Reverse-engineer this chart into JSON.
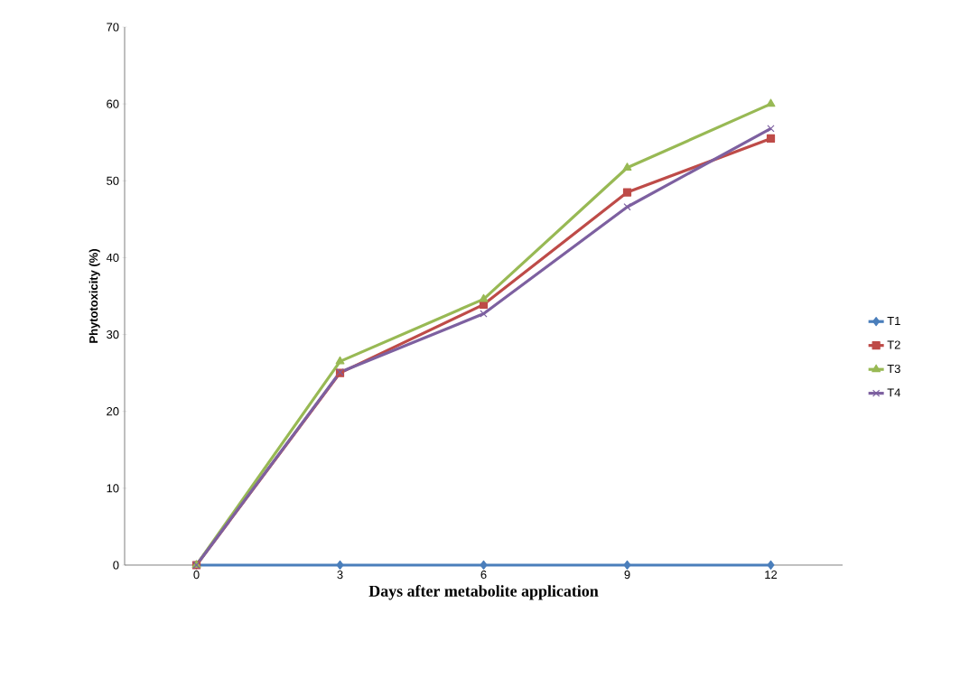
{
  "chart_data": {
    "type": "line",
    "xlabel": "Days after metabolite application",
    "ylabel": "Phytotoxicity (%)",
    "categories": [
      "0",
      "3",
      "6",
      "9",
      "12"
    ],
    "ylim": [
      0,
      70
    ],
    "yticks": [
      0,
      10,
      20,
      30,
      40,
      50,
      60,
      70
    ],
    "grid": false,
    "legend": "right",
    "series": [
      {
        "name": "T1",
        "color": "#4a7ebb",
        "marker": "diamond",
        "values": [
          0,
          0,
          0,
          0,
          0
        ]
      },
      {
        "name": "T2",
        "color": "#be4b48",
        "marker": "square",
        "values": [
          0,
          25,
          33.9,
          48.5,
          55.5
        ]
      },
      {
        "name": "T3",
        "color": "#98b954",
        "marker": "triangle",
        "values": [
          0,
          26.5,
          34.6,
          51.7,
          60
        ]
      },
      {
        "name": "T4",
        "color": "#7d60a0",
        "marker": "cross",
        "values": [
          0,
          25.1,
          32.7,
          46.6,
          56.8
        ]
      }
    ]
  }
}
